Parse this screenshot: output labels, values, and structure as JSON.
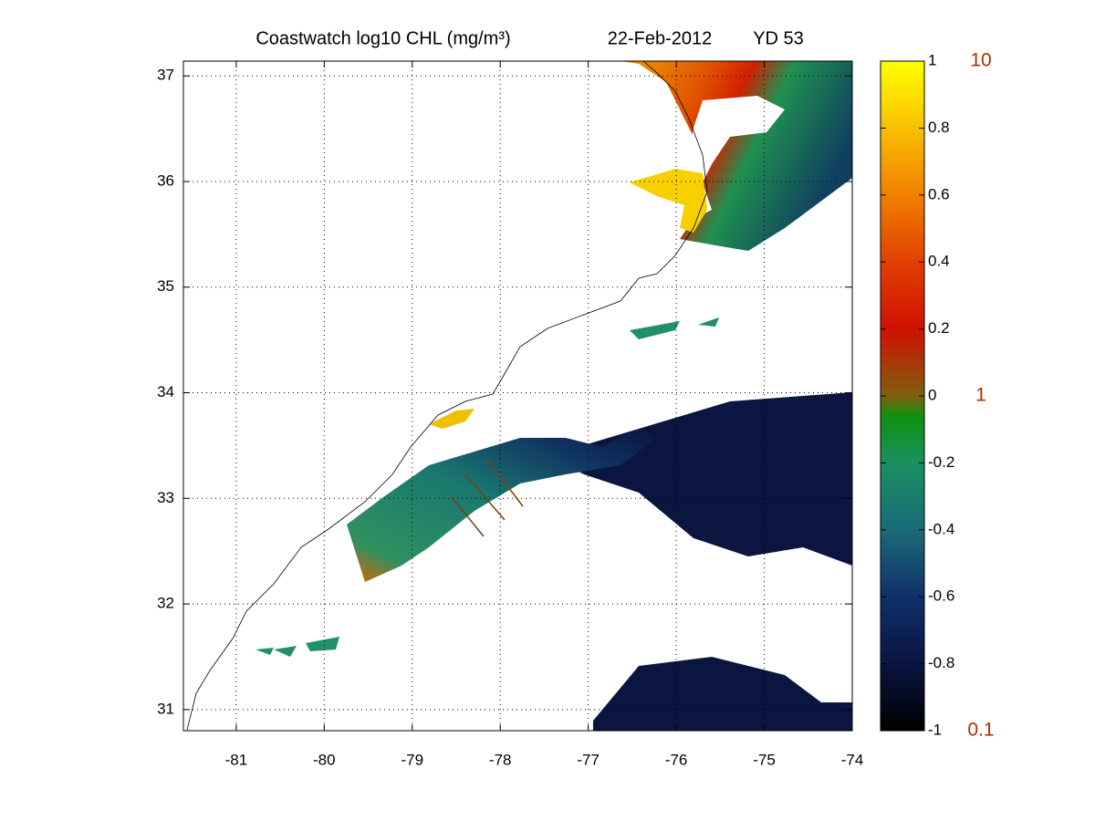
{
  "chart_data": {
    "type": "map",
    "title": "Coastwatch  log10  CHL (mg/m³)",
    "date": "22-Feb-2012",
    "year_day": "YD 53",
    "xlim": [
      -81.6,
      -74
    ],
    "xticks": [
      -81,
      -80,
      -79,
      -78,
      -77,
      -76,
      -75,
      -74
    ],
    "ylim": [
      30.8,
      37.14
    ],
    "yticks": [
      31,
      32,
      33,
      34,
      35,
      36,
      37
    ],
    "grid": true,
    "colorbar": {
      "lim": [
        -1,
        1
      ],
      "ticks": [
        -1,
        -0.8,
        -0.6,
        -0.4,
        -0.2,
        0,
        0.2,
        0.4,
        0.6,
        0.8,
        1
      ],
      "secondary_ticks": [
        {
          "value": 1,
          "label": "10"
        },
        {
          "value": 0,
          "label": "1"
        },
        {
          "value": -1,
          "label": "0.1"
        }
      ],
      "secondary_color": "#b03000"
    }
  }
}
